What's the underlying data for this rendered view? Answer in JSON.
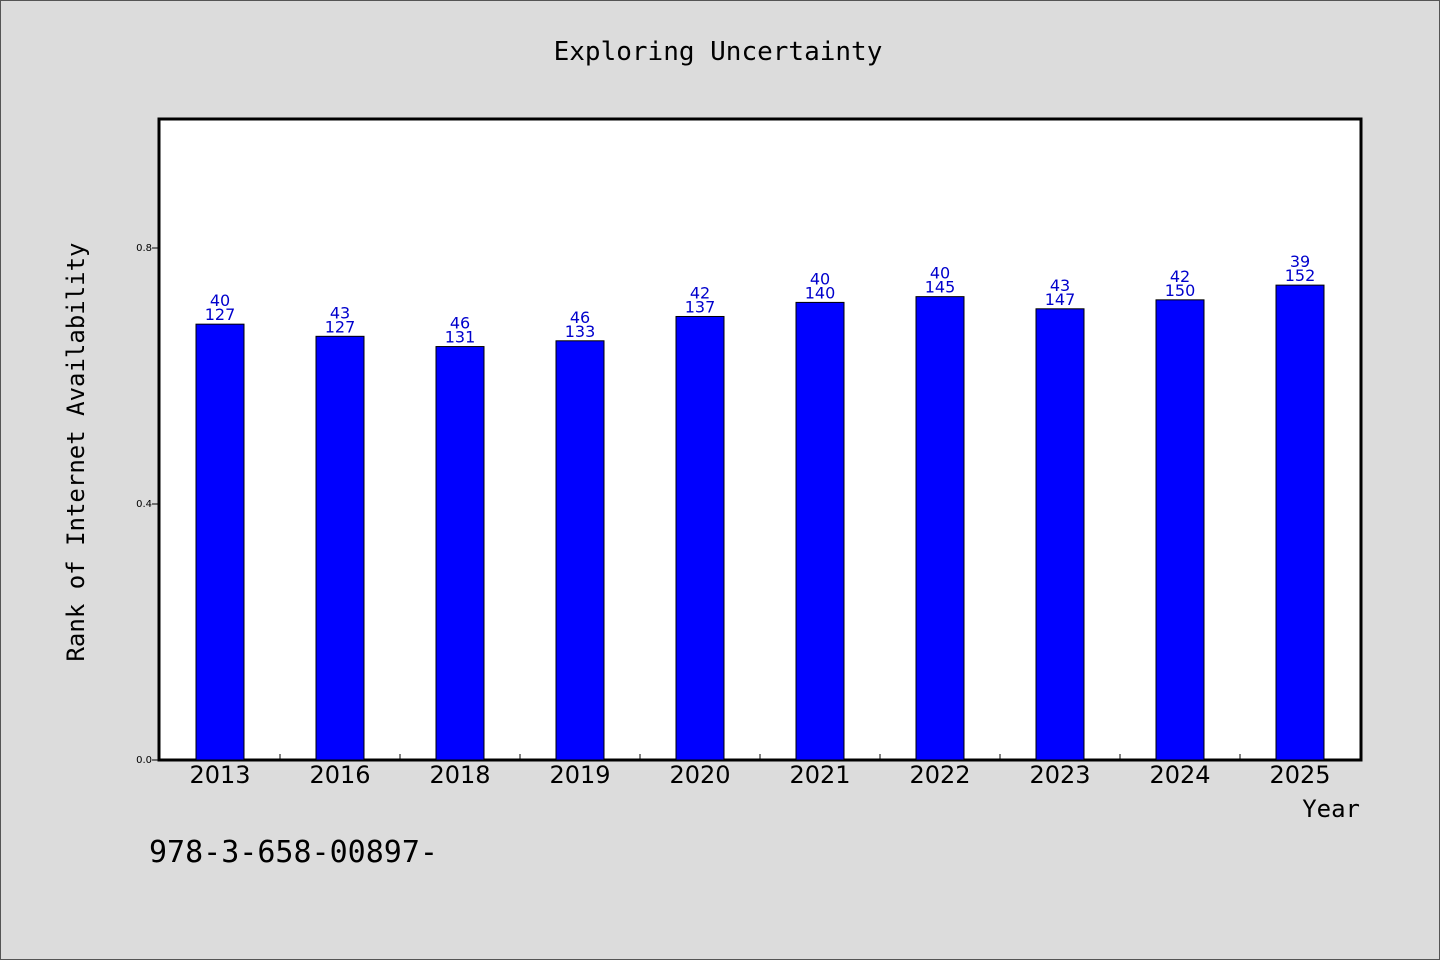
{
  "chart_data": {
    "type": "bar",
    "title": "Exploring Uncertainty",
    "xlabel": "Year",
    "ylabel": "Rank of Internet Availability",
    "ylim": [
      0,
      1.0
    ],
    "yticks": [
      0.0,
      0.4,
      0.8
    ],
    "ytick_labels": [
      "0.0",
      "0.4",
      "0.8"
    ],
    "grid": false,
    "categories": [
      "2013",
      "2016",
      "2018",
      "2019",
      "2020",
      "2021",
      "2022",
      "2023",
      "2024",
      "2025"
    ],
    "values": [
      0.681,
      0.662,
      0.646,
      0.655,
      0.693,
      0.715,
      0.724,
      0.705,
      0.719,
      0.742
    ],
    "label_top": [
      "40",
      "43",
      "46",
      "46",
      "42",
      "40",
      "40",
      "43",
      "42",
      "39"
    ],
    "label_bottom": [
      "127",
      "127",
      "131",
      "133",
      "137",
      "140",
      "145",
      "147",
      "150",
      "152"
    ],
    "bar_color": "#0000ff",
    "label_color": "#0000cc",
    "footnote": "978-3-658-00897-"
  }
}
